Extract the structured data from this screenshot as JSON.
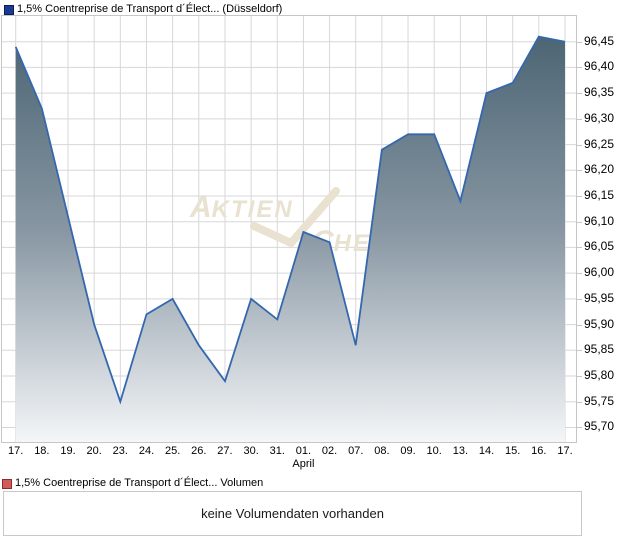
{
  "chart_data": {
    "type": "area",
    "title": "1,5% Coentreprise de Transport d´Élect... (Düsseldorf)",
    "categories": [
      "17.",
      "18.",
      "19.",
      "20.",
      "23.",
      "24.",
      "25.",
      "26.",
      "27.",
      "30.",
      "31.",
      "01.",
      "02.",
      "07.",
      "08.",
      "09.",
      "10.",
      "13.",
      "14.",
      "15.",
      "16.",
      "17."
    ],
    "values": [
      96.44,
      96.32,
      96.11,
      95.9,
      95.75,
      95.92,
      95.95,
      95.86,
      95.79,
      95.95,
      95.91,
      96.08,
      96.06,
      95.86,
      96.24,
      96.27,
      96.27,
      96.14,
      96.35,
      96.37,
      96.46,
      96.45
    ],
    "month_label": "April",
    "month_label_index": 11,
    "y_ticks": [
      96.45,
      96.4,
      96.35,
      96.3,
      96.25,
      96.2,
      96.15,
      96.1,
      96.05,
      96.0,
      95.95,
      95.9,
      95.85,
      95.8,
      95.75,
      95.7
    ],
    "ylim": [
      95.67,
      96.5
    ],
    "grid": true,
    "legend_position": "top-left",
    "line_color": "#3567ae",
    "area_gradient_top": "#46606f",
    "area_gradient_mid": "#8796a2",
    "area_gradient_bottom": "#f4f6f8",
    "grid_color": "#d7d7d7",
    "price_swatch_color": "#1b3a94",
    "volume_swatch_color": "#cf5b5b",
    "watermark": {
      "text1": "AKTIEN",
      "text2": "CHECK",
      "color": "#e9e2d1"
    }
  },
  "volume": {
    "legend_label": "1,5% Coentreprise de Transport d´Élect... Volumen",
    "message": "keine Volumendaten vorhanden"
  }
}
